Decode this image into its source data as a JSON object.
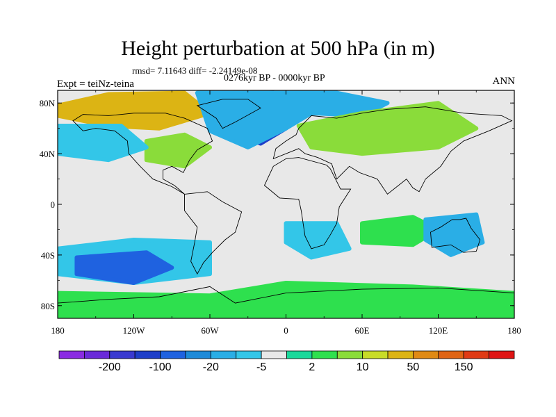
{
  "title": "Height perturbation at 500 hPa (in m)",
  "stats": "rmsd= 7.11643 diff= -2.24149e-08",
  "period": "0276kyr BP - 0000kyr BP",
  "experiment": "Expt = teiNz-teina",
  "season": "ANN",
  "axes": {
    "lat_ticks": [
      {
        "value": 80,
        "label": "80N"
      },
      {
        "value": 40,
        "label": "40N"
      },
      {
        "value": 0,
        "label": "0"
      },
      {
        "value": -40,
        "label": "40S"
      },
      {
        "value": -80,
        "label": "80S"
      }
    ],
    "lon_ticks": [
      {
        "value": -180,
        "label": "180"
      },
      {
        "value": -120,
        "label": "120W"
      },
      {
        "value": -60,
        "label": "60W"
      },
      {
        "value": 0,
        "label": "0"
      },
      {
        "value": 60,
        "label": "60E"
      },
      {
        "value": 120,
        "label": "120E"
      },
      {
        "value": 180,
        "label": "180"
      }
    ]
  },
  "colorbar": {
    "colors": [
      "#8a2be2",
      "#6a2ad8",
      "#3a3ad0",
      "#1e3ec8",
      "#1f62e0",
      "#1e8ad8",
      "#2aaee6",
      "#33c6e8",
      "#e8e8e8",
      "#1ad89a",
      "#2ee04e",
      "#8adc3a",
      "#c8dc28",
      "#dcb414",
      "#e08a14",
      "#e06414",
      "#e03a14",
      "#e01414"
    ],
    "labels": [
      "-200",
      "-100",
      "-20",
      "-5",
      "2",
      "10",
      "50",
      "150"
    ]
  },
  "field_regions": [
    {
      "name": "arctic-warm",
      "color": "#dcb414",
      "pts": [
        [
          -180,
          78
        ],
        [
          -140,
          87
        ],
        [
          -80,
          88
        ],
        [
          -60,
          72
        ],
        [
          -100,
          60
        ],
        [
          -140,
          62
        ],
        [
          -180,
          70
        ]
      ]
    },
    {
      "name": "greenland-low",
      "color": "#1e3ec8",
      "pts": [
        [
          -60,
          85
        ],
        [
          -10,
          88
        ],
        [
          20,
          80
        ],
        [
          0,
          60
        ],
        [
          -20,
          48
        ],
        [
          -40,
          55
        ],
        [
          -55,
          72
        ]
      ]
    },
    {
      "name": "n-atlantic-low",
      "color": "#2aaee6",
      "pts": [
        [
          -70,
          88
        ],
        [
          40,
          88
        ],
        [
          80,
          80
        ],
        [
          60,
          70
        ],
        [
          20,
          72
        ],
        [
          0,
          60
        ],
        [
          -30,
          45
        ],
        [
          -60,
          58
        ]
      ]
    },
    {
      "name": "eurasia-green",
      "color": "#8adc3a",
      "pts": [
        [
          10,
          62
        ],
        [
          60,
          72
        ],
        [
          120,
          80
        ],
        [
          150,
          60
        ],
        [
          120,
          45
        ],
        [
          60,
          40
        ],
        [
          20,
          45
        ]
      ]
    },
    {
      "name": "n-america-green",
      "color": "#8adc3a",
      "pts": [
        [
          -110,
          50
        ],
        [
          -80,
          55
        ],
        [
          -60,
          45
        ],
        [
          -80,
          30
        ],
        [
          -110,
          35
        ]
      ]
    },
    {
      "name": "n-pacific-blue",
      "color": "#33c6e8",
      "pts": [
        [
          -180,
          62
        ],
        [
          -130,
          62
        ],
        [
          -110,
          45
        ],
        [
          -140,
          35
        ],
        [
          -180,
          40
        ]
      ]
    },
    {
      "name": "tropics-pacific-blue",
      "color": "#33c6e8",
      "pts": [
        [
          -180,
          -35
        ],
        [
          -120,
          -28
        ],
        [
          -60,
          -30
        ],
        [
          -60,
          -55
        ],
        [
          -120,
          -62
        ],
        [
          -180,
          -55
        ]
      ]
    },
    {
      "name": "s-pacific-deep",
      "color": "#1f62e0",
      "pts": [
        [
          -165,
          -42
        ],
        [
          -110,
          -38
        ],
        [
          -90,
          -50
        ],
        [
          -120,
          -62
        ],
        [
          -165,
          -55
        ]
      ]
    },
    {
      "name": "s-atlantic-blue",
      "color": "#33c6e8",
      "pts": [
        [
          0,
          -15
        ],
        [
          40,
          -15
        ],
        [
          50,
          -35
        ],
        [
          20,
          -42
        ],
        [
          0,
          -30
        ]
      ]
    },
    {
      "name": "s-indian-green",
      "color": "#2ee04e",
      "pts": [
        [
          60,
          -15
        ],
        [
          100,
          -10
        ],
        [
          120,
          -20
        ],
        [
          100,
          -32
        ],
        [
          60,
          -30
        ]
      ]
    },
    {
      "name": "australia-blue",
      "color": "#2aaee6",
      "pts": [
        [
          110,
          -12
        ],
        [
          150,
          -8
        ],
        [
          155,
          -30
        ],
        [
          130,
          -40
        ],
        [
          110,
          -28
        ]
      ]
    },
    {
      "name": "s-ocean-green",
      "color": "#2ee04e",
      "pts": [
        [
          -180,
          -70
        ],
        [
          -60,
          -72
        ],
        [
          0,
          -62
        ],
        [
          100,
          -65
        ],
        [
          180,
          -70
        ],
        [
          180,
          -88
        ],
        [
          -180,
          -88
        ]
      ]
    }
  ],
  "continents": [
    {
      "name": "north-america",
      "pts": [
        [
          -168,
          66
        ],
        [
          -160,
          71
        ],
        [
          -140,
          70
        ],
        [
          -120,
          72
        ],
        [
          -95,
          72
        ],
        [
          -80,
          68
        ],
        [
          -62,
          60
        ],
        [
          -58,
          50
        ],
        [
          -70,
          43
        ],
        [
          -76,
          35
        ],
        [
          -81,
          25
        ],
        [
          -90,
          30
        ],
        [
          -97,
          27
        ],
        [
          -97,
          20
        ],
        [
          -88,
          15
        ],
        [
          -80,
          8
        ],
        [
          -90,
          14
        ],
        [
          -105,
          20
        ],
        [
          -115,
          30
        ],
        [
          -124,
          40
        ],
        [
          -125,
          50
        ],
        [
          -135,
          58
        ],
        [
          -150,
          60
        ],
        [
          -160,
          58
        ],
        [
          -168,
          66
        ]
      ]
    },
    {
      "name": "greenland",
      "pts": [
        [
          -70,
          78
        ],
        [
          -50,
          83
        ],
        [
          -30,
          83
        ],
        [
          -20,
          76
        ],
        [
          -40,
          65
        ],
        [
          -50,
          60
        ],
        [
          -55,
          68
        ],
        [
          -70,
          78
        ]
      ]
    },
    {
      "name": "south-america",
      "pts": [
        [
          -80,
          8
        ],
        [
          -62,
          10
        ],
        [
          -50,
          2
        ],
        [
          -35,
          -6
        ],
        [
          -40,
          -22
        ],
        [
          -48,
          -28
        ],
        [
          -58,
          -38
        ],
        [
          -65,
          -46
        ],
        [
          -70,
          -55
        ],
        [
          -75,
          -45
        ],
        [
          -72,
          -30
        ],
        [
          -70,
          -18
        ],
        [
          -80,
          -5
        ],
        [
          -80,
          8
        ]
      ]
    },
    {
      "name": "africa",
      "pts": [
        [
          -17,
          15
        ],
        [
          -10,
          30
        ],
        [
          0,
          36
        ],
        [
          10,
          37
        ],
        [
          32,
          31
        ],
        [
          35,
          28
        ],
        [
          43,
          12
        ],
        [
          51,
          12
        ],
        [
          42,
          -2
        ],
        [
          40,
          -15
        ],
        [
          35,
          -24
        ],
        [
          30,
          -32
        ],
        [
          20,
          -35
        ],
        [
          15,
          -25
        ],
        [
          12,
          -5
        ],
        [
          10,
          4
        ],
        [
          -5,
          5
        ],
        [
          -17,
          15
        ]
      ]
    },
    {
      "name": "eurasia",
      "pts": [
        [
          -10,
          36
        ],
        [
          -8,
          44
        ],
        [
          0,
          50
        ],
        [
          8,
          55
        ],
        [
          10,
          60
        ],
        [
          20,
          70
        ],
        [
          40,
          68
        ],
        [
          60,
          72
        ],
        [
          80,
          75
        ],
        [
          110,
          77
        ],
        [
          140,
          72
        ],
        [
          170,
          70
        ],
        [
          178,
          66
        ],
        [
          160,
          58
        ],
        [
          140,
          50
        ],
        [
          130,
          42
        ],
        [
          122,
          30
        ],
        [
          110,
          20
        ],
        [
          105,
          10
        ],
        [
          100,
          13
        ],
        [
          95,
          20
        ],
        [
          80,
          8
        ],
        [
          72,
          20
        ],
        [
          58,
          25
        ],
        [
          50,
          30
        ],
        [
          40,
          20
        ],
        [
          36,
          32
        ],
        [
          25,
          37
        ],
        [
          15,
          40
        ],
        [
          10,
          44
        ],
        [
          -10,
          36
        ]
      ]
    },
    {
      "name": "australia",
      "pts": [
        [
          114,
          -22
        ],
        [
          122,
          -18
        ],
        [
          131,
          -12
        ],
        [
          137,
          -12
        ],
        [
          142,
          -11
        ],
        [
          146,
          -19
        ],
        [
          153,
          -28
        ],
        [
          150,
          -37
        ],
        [
          140,
          -38
        ],
        [
          130,
          -32
        ],
        [
          115,
          -34
        ],
        [
          114,
          -22
        ]
      ]
    },
    {
      "name": "antarctica",
      "pts": [
        [
          -180,
          -78
        ],
        [
          -140,
          -75
        ],
        [
          -100,
          -73
        ],
        [
          -60,
          -65
        ],
        [
          -40,
          -78
        ],
        [
          0,
          -70
        ],
        [
          60,
          -67
        ],
        [
          120,
          -66
        ],
        [
          180,
          -70
        ]
      ]
    }
  ]
}
